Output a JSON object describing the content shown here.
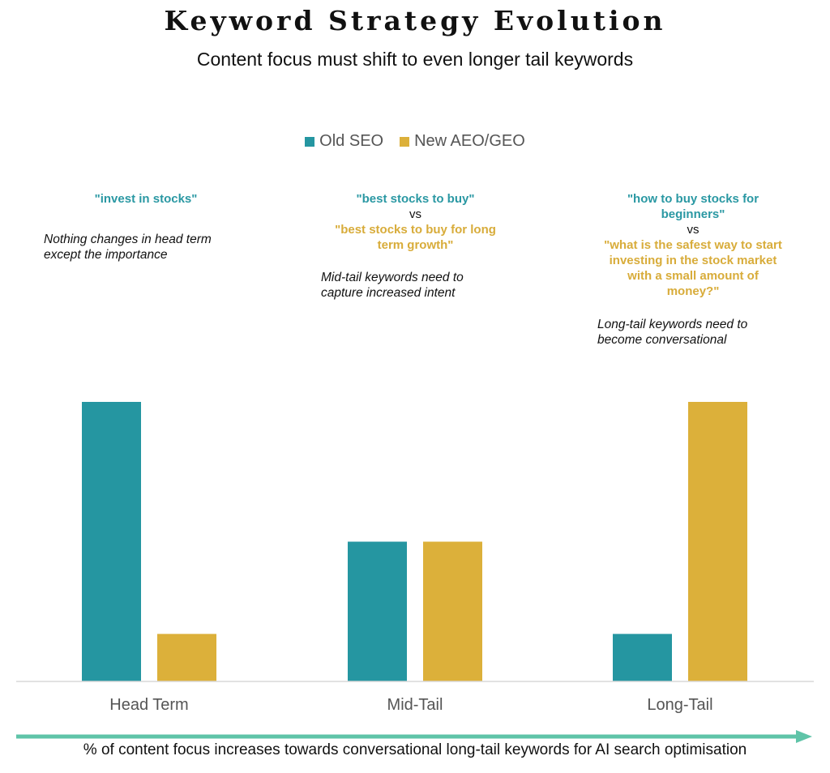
{
  "title": "Keyword Strategy Evolution",
  "subtitle": "Content focus must shift to even longer tail keywords",
  "footer": "% of content focus increases towards conversational long-tail keywords for AI search optimisation",
  "colors": {
    "old": "#2596A1",
    "new": "#DCB03A",
    "arrow": "#5FC4A8",
    "baseline": "#d9d9d9"
  },
  "annotations": [
    {
      "old_keyword": "\"invest in stocks\"",
      "vs": "",
      "new_keyword": "",
      "note": "Nothing changes in head term except the importance"
    },
    {
      "old_keyword": "\"best stocks to buy\"",
      "vs": "vs",
      "new_keyword": "\"best stocks to buy for long term growth\"",
      "note": "Mid-tail keywords need to capture increased intent"
    },
    {
      "old_keyword": "\"how to buy stocks for beginners\"",
      "vs": "vs",
      "new_keyword": "\"what is the safest way to start investing in the stock market with a small amount of money?\"",
      "note": "Long-tail keywords need to become conversational"
    }
  ],
  "chart_data": {
    "type": "bar",
    "categories": [
      "Head Term",
      "Mid-Tail",
      "Long-Tail"
    ],
    "series": [
      {
        "name": "Old SEO",
        "values": [
          100,
          50,
          17
        ]
      },
      {
        "name": "New AEO/GEO",
        "values": [
          17,
          50,
          100
        ]
      }
    ],
    "ylim": [
      0,
      100
    ],
    "grid": false,
    "legend": "top-center"
  }
}
